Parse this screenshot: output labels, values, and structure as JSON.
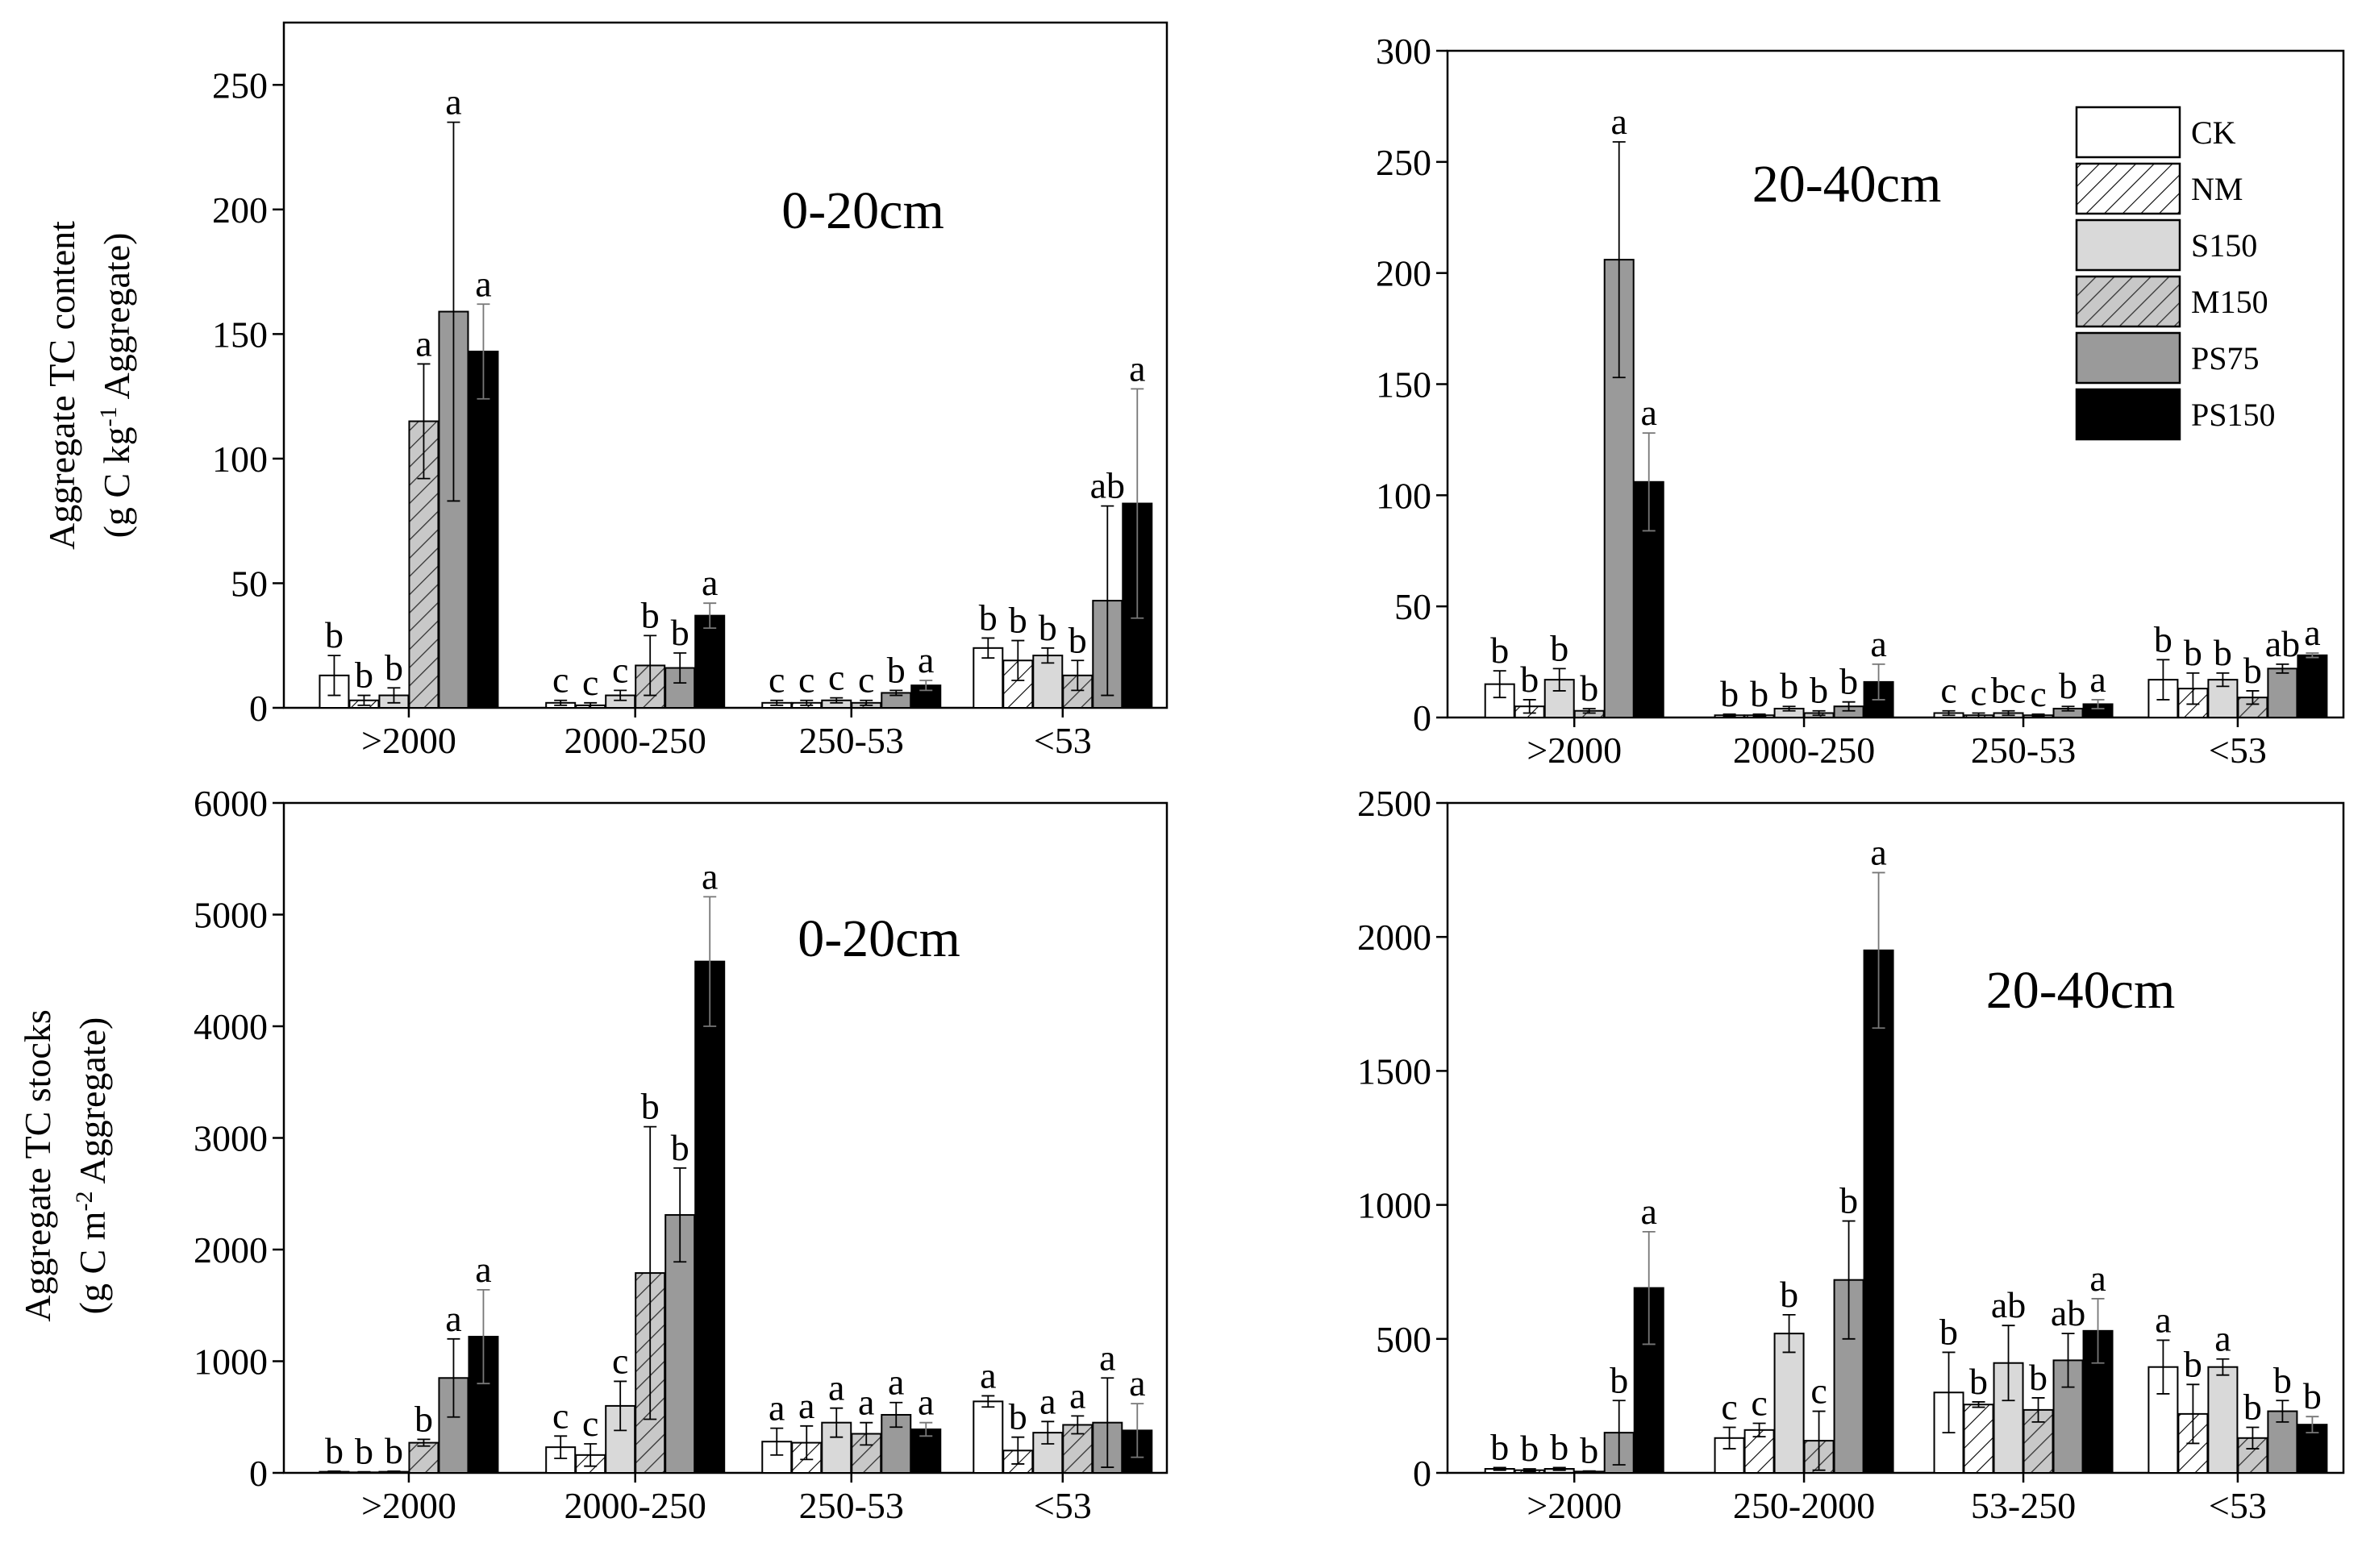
{
  "legend": [
    "CK",
    "NM",
    "S150",
    "M150",
    "PS75",
    "PS150"
  ],
  "y_labels": {
    "content": {
      "line1": "Aggregate TC content",
      "line2_prefix": "(g C kg",
      "line2_sup": "-1",
      "line2_suffix": " Aggregate)"
    },
    "stocks": {
      "line1": "Aggregate TC stocks",
      "line2_prefix": "(g C m",
      "line2_sup": "-2",
      "line2_suffix": " Aggregate)"
    }
  },
  "series_colors": {
    "CK": "#ffffff",
    "NM": "#ffffff",
    "S150": "#d9d9d9",
    "M150": "#c8c8c8",
    "PS75": "#9a9a9a",
    "PS150": "#000000"
  },
  "chart_data": [
    {
      "type": "bar",
      "title": "0-20cm",
      "ylabel": "Aggregate TC content (g C kg-1 Aggregate)",
      "ylim": [
        0,
        275
      ],
      "yticks": [
        0,
        50,
        100,
        150,
        200,
        250
      ],
      "categories": [
        ">2000",
        "2000-250",
        "250-53",
        "<53"
      ],
      "series": [
        {
          "name": "CK",
          "values": [
            13,
            2,
            2,
            24
          ],
          "errors": [
            8,
            1,
            1,
            4
          ],
          "letters": [
            "b",
            "c",
            "c",
            "b"
          ]
        },
        {
          "name": "NM",
          "values": [
            3,
            1,
            2,
            19
          ],
          "errors": [
            2,
            1,
            1,
            8
          ],
          "letters": [
            "b",
            "c",
            "c",
            "b"
          ]
        },
        {
          "name": "S150",
          "values": [
            5,
            5,
            3,
            21
          ],
          "errors": [
            3,
            2,
            1,
            3
          ],
          "letters": [
            "b",
            "c",
            "c",
            "b"
          ]
        },
        {
          "name": "M150",
          "values": [
            115,
            17,
            2,
            13
          ],
          "errors": [
            23,
            12,
            1,
            6
          ],
          "letters": [
            "a",
            "b",
            "c",
            "b"
          ]
        },
        {
          "name": "PS75",
          "values": [
            159,
            16,
            6,
            43
          ],
          "errors": [
            76,
            6,
            1,
            38
          ],
          "letters": [
            "a",
            "b",
            "b",
            "ab"
          ]
        },
        {
          "name": "PS150",
          "values": [
            143,
            37,
            9,
            82
          ],
          "errors": [
            19,
            5,
            2,
            46
          ],
          "letters": [
            "a",
            "a",
            "a",
            "a"
          ]
        }
      ]
    },
    {
      "type": "bar",
      "title": "20-40cm",
      "ylabel": "",
      "ylim": [
        0,
        300
      ],
      "yticks": [
        0,
        50,
        100,
        150,
        200,
        250,
        300
      ],
      "categories": [
        ">2000",
        "2000-250",
        "250-53",
        "<53"
      ],
      "series": [
        {
          "name": "CK",
          "values": [
            15,
            1,
            2,
            17
          ],
          "errors": [
            6,
            0.5,
            1,
            9
          ],
          "letters": [
            "b",
            "b",
            "c",
            "b"
          ]
        },
        {
          "name": "NM",
          "values": [
            5,
            1,
            1,
            13
          ],
          "errors": [
            3,
            0.5,
            1,
            7
          ],
          "letters": [
            "b",
            "b",
            "c",
            "b"
          ]
        },
        {
          "name": "S150",
          "values": [
            17,
            4,
            2,
            17
          ],
          "errors": [
            5,
            1,
            1,
            3
          ],
          "letters": [
            "b",
            "b",
            "bc",
            "b"
          ]
        },
        {
          "name": "M150",
          "values": [
            3,
            2,
            1,
            9
          ],
          "errors": [
            1,
            1,
            0.5,
            3
          ],
          "letters": [
            "b",
            "b",
            "c",
            "b"
          ]
        },
        {
          "name": "PS75",
          "values": [
            206,
            5,
            4,
            22
          ],
          "errors": [
            53,
            2,
            1,
            2
          ],
          "letters": [
            "a",
            "b",
            "b",
            "ab"
          ]
        },
        {
          "name": "PS150",
          "values": [
            106,
            16,
            6,
            28
          ],
          "errors": [
            22,
            8,
            2,
            1
          ],
          "letters": [
            "a",
            "a",
            "a",
            "a"
          ]
        }
      ]
    },
    {
      "type": "bar",
      "title": "0-20cm",
      "ylabel": "Aggregate TC stocks (g C m-2 Aggregate)",
      "ylim": [
        0,
        6000
      ],
      "yticks": [
        0,
        1000,
        2000,
        3000,
        4000,
        5000,
        6000
      ],
      "categories": [
        ">2000",
        "2000-250",
        "250-53",
        "<53"
      ],
      "series": [
        {
          "name": "CK",
          "values": [
            10,
            230,
            280,
            640
          ],
          "errors": [
            5,
            100,
            120,
            50
          ],
          "letters": [
            "b",
            "c",
            "a",
            "a"
          ]
        },
        {
          "name": "NM",
          "values": [
            5,
            160,
            270,
            200
          ],
          "errors": [
            5,
            100,
            150,
            120
          ],
          "letters": [
            "b",
            "c",
            "a",
            "b"
          ]
        },
        {
          "name": "S150",
          "values": [
            10,
            600,
            450,
            360
          ],
          "errors": [
            5,
            220,
            130,
            100
          ],
          "letters": [
            "b",
            "c",
            "a",
            "a"
          ]
        },
        {
          "name": "M150",
          "values": [
            270,
            1790,
            350,
            430
          ],
          "errors": [
            30,
            1310,
            100,
            80
          ],
          "letters": [
            "b",
            "b",
            "a",
            "a"
          ]
        },
        {
          "name": "PS75",
          "values": [
            850,
            2310,
            520,
            450
          ],
          "errors": [
            350,
            420,
            110,
            400
          ],
          "letters": [
            "a",
            "b",
            "a",
            "a"
          ]
        },
        {
          "name": "PS150",
          "values": [
            1220,
            4580,
            390,
            380
          ],
          "errors": [
            420,
            580,
            60,
            240
          ],
          "letters": [
            "a",
            "a",
            "a",
            "a"
          ]
        }
      ]
    },
    {
      "type": "bar",
      "title": "20-40cm",
      "ylabel": "",
      "ylim": [
        0,
        2500
      ],
      "yticks": [
        0,
        500,
        1000,
        1500,
        2000,
        2500
      ],
      "categories": [
        ">2000",
        "250-2000",
        "53-250",
        "<53"
      ],
      "series": [
        {
          "name": "CK",
          "values": [
            15,
            130,
            300,
            395
          ],
          "errors": [
            5,
            40,
            150,
            100
          ],
          "letters": [
            "b",
            "c",
            "b",
            "a"
          ]
        },
        {
          "name": "NM",
          "values": [
            10,
            160,
            255,
            220
          ],
          "errors": [
            5,
            25,
            10,
            110
          ],
          "letters": [
            "b",
            "c",
            "b",
            "b"
          ]
        },
        {
          "name": "S150",
          "values": [
            15,
            520,
            410,
            395
          ],
          "errors": [
            5,
            70,
            140,
            30
          ],
          "letters": [
            "b",
            "b",
            "ab",
            "a"
          ]
        },
        {
          "name": "M150",
          "values": [
            5,
            120,
            235,
            130
          ],
          "errors": [
            2,
            110,
            45,
            40
          ],
          "letters": [
            "b",
            "c",
            "b",
            "b"
          ]
        },
        {
          "name": "PS75",
          "values": [
            150,
            720,
            420,
            230
          ],
          "errors": [
            120,
            220,
            100,
            40
          ],
          "letters": [
            "b",
            "b",
            "ab",
            "b"
          ]
        },
        {
          "name": "PS150",
          "values": [
            690,
            1950,
            530,
            180
          ],
          "errors": [
            210,
            290,
            120,
            30
          ],
          "letters": [
            "a",
            "a",
            "a",
            "b"
          ]
        }
      ]
    }
  ]
}
